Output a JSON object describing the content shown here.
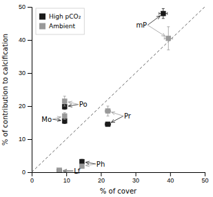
{
  "chart_data": {
    "type": "scatter",
    "title": "",
    "xlabel": "% of cover",
    "ylabel": "% of contribution to calcification",
    "xlim": [
      0,
      50
    ],
    "ylim": [
      0,
      50
    ],
    "xticks": [
      0,
      10,
      20,
      30,
      40,
      50
    ],
    "yticks": [
      0,
      10,
      20,
      30,
      40,
      50
    ],
    "marker": "square",
    "legend": "upper left",
    "series": [
      {
        "name": "High pCO₂",
        "color": "#1a1a1a",
        "x": [
          38.0,
          9.5,
          9.5,
          22.0,
          14.5,
          8.0
        ],
        "values": [
          48.0,
          19.8,
          15.5,
          14.5,
          3.2,
          0.3
        ],
        "xerr": [
          1.2,
          0.4,
          0.4,
          0.8,
          0.4,
          0.4
        ],
        "yerr": [
          1.5,
          0.8,
          0.8,
          0.5,
          0.7,
          0.15
        ]
      },
      {
        "name": "Ambient",
        "color": "#999999",
        "x": [
          39.5,
          9.5,
          9.5,
          22.0,
          14.5,
          8.0
        ],
        "values": [
          40.5,
          21.5,
          17.0,
          18.5,
          1.8,
          0.6
        ],
        "xerr": [
          1.2,
          0.4,
          0.4,
          0.8,
          0.4,
          0.4
        ],
        "yerr": [
          3.5,
          1.5,
          1.0,
          1.5,
          0.4,
          0.15
        ]
      }
    ],
    "annotations": [
      {
        "text": "mP",
        "x": 33.5,
        "y": 44.5
      },
      {
        "text": "Po",
        "x": 13.5,
        "y": 20.5
      },
      {
        "text": "Mo",
        "x": 6.0,
        "y": 16.0
      },
      {
        "text": "Pr",
        "x": 26.5,
        "y": 17.0
      },
      {
        "text": "Ph",
        "x": 18.5,
        "y": 2.5
      },
      {
        "text": "Lf",
        "x": 12.0,
        "y": 0.4
      }
    ]
  }
}
